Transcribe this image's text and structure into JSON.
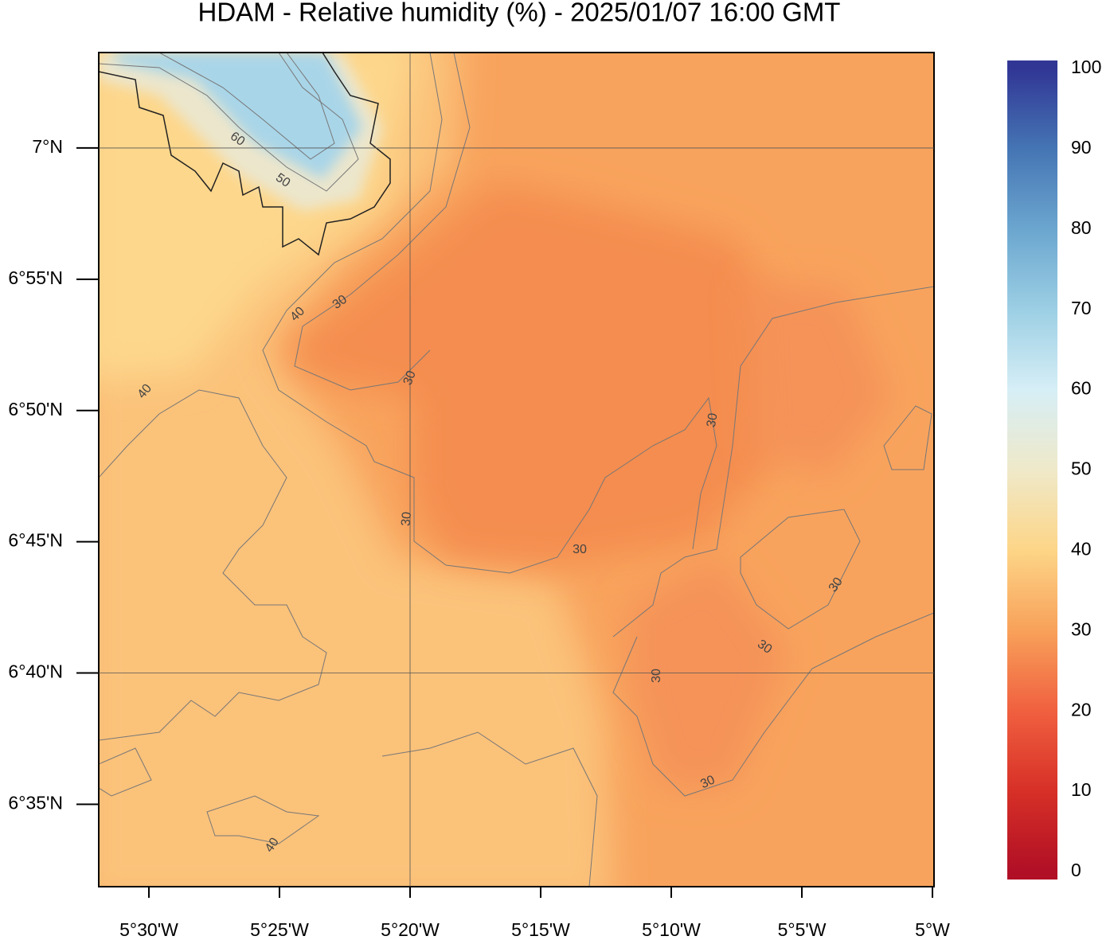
{
  "title": "HDAM - Relative humidity (%)  -  2025/01/07  16:00 GMT",
  "map": {
    "xlim": [
      -5.532,
      -4.999
    ],
    "ylim": [
      6.531,
      7.0606
    ],
    "xticks": [
      {
        "value": -5.5,
        "label": "5°30'W"
      },
      {
        "value": -5.41667,
        "label": "5°25'W"
      },
      {
        "value": -5.33333,
        "label": "5°20'W"
      },
      {
        "value": -5.25,
        "label": "5°15'W"
      },
      {
        "value": -5.16667,
        "label": "5°10'W"
      },
      {
        "value": -5.08333,
        "label": "5°5'W"
      },
      {
        "value": -5,
        "label": "5°W"
      }
    ],
    "yticks": [
      {
        "value": 7,
        "label": "7°N"
      },
      {
        "value": 6.91667,
        "label": "6°55'N"
      },
      {
        "value": 6.83333,
        "label": "6°50'N"
      },
      {
        "value": 6.75,
        "label": "6°45'N"
      },
      {
        "value": 6.66667,
        "label": "6°40'N"
      },
      {
        "value": 6.58333,
        "label": "6°35'N"
      }
    ],
    "grid_lon": [
      -5.33333
    ],
    "grid_lat": [
      7,
      6.66667
    ],
    "contour_labels": [
      60,
      50,
      40,
      30,
      30,
      40,
      30,
      30,
      30,
      30,
      30,
      30,
      30,
      40
    ]
  },
  "colorbar": {
    "lim": [
      0,
      100
    ],
    "ticks": [
      0,
      10,
      20,
      30,
      40,
      50,
      60,
      70,
      80,
      90,
      100
    ],
    "colors": [
      "#b10f26",
      "#d73027",
      "#f0603f",
      "#f8a15a",
      "#fdd587",
      "#efe9c9",
      "#d6eef6",
      "#9ccfe4",
      "#6ba6cf",
      "#4575b4",
      "#313695"
    ]
  }
}
